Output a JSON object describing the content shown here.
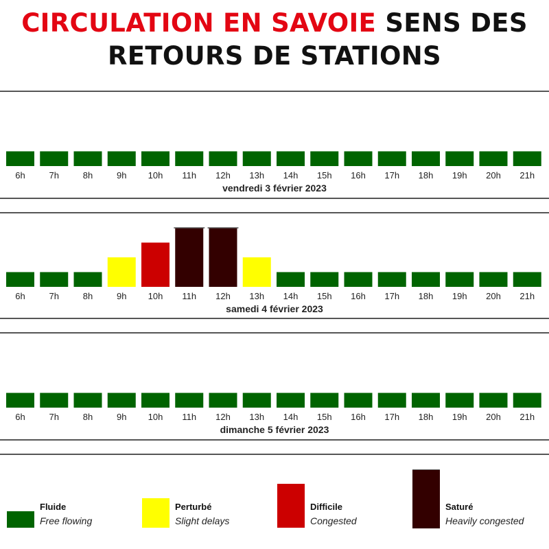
{
  "title": {
    "highlight": "CIRCULATION EN SAVOIE",
    "rest_line1": "SENS DES",
    "line2": "RETOURS DE STATIONS"
  },
  "colors": {
    "fluide": "#006400",
    "perturbe": "#ffff00",
    "difficile": "#cc0000",
    "sature": "#330000"
  },
  "chart_data": [
    {
      "type": "bar",
      "date_label": "vendredi 3 février 2023",
      "categories": [
        "6h",
        "7h",
        "8h",
        "9h",
        "10h",
        "11h",
        "12h",
        "13h",
        "14h",
        "15h",
        "16h",
        "17h",
        "18h",
        "19h",
        "20h",
        "21h"
      ],
      "levels": [
        1,
        1,
        1,
        1,
        1,
        1,
        1,
        1,
        1,
        1,
        1,
        1,
        1,
        1,
        1,
        1
      ],
      "ylim": [
        0,
        4
      ]
    },
    {
      "type": "bar",
      "date_label": "samedi 4 février 2023",
      "categories": [
        "6h",
        "7h",
        "8h",
        "9h",
        "10h",
        "11h",
        "12h",
        "13h",
        "14h",
        "15h",
        "16h",
        "17h",
        "18h",
        "19h",
        "20h",
        "21h"
      ],
      "levels": [
        1,
        1,
        1,
        2,
        3,
        4,
        4,
        2,
        1,
        1,
        1,
        1,
        1,
        1,
        1,
        1
      ],
      "ylim": [
        0,
        4
      ]
    },
    {
      "type": "bar",
      "date_label": "dimanche 5 février 2023",
      "categories": [
        "6h",
        "7h",
        "8h",
        "9h",
        "10h",
        "11h",
        "12h",
        "13h",
        "14h",
        "15h",
        "16h",
        "17h",
        "18h",
        "19h",
        "20h",
        "21h"
      ],
      "levels": [
        1,
        1,
        1,
        1,
        1,
        1,
        1,
        1,
        1,
        1,
        1,
        1,
        1,
        1,
        1,
        1
      ],
      "ylim": [
        0,
        4
      ]
    }
  ],
  "legend": [
    {
      "level": 1,
      "fr": "Fluide",
      "en": "Free flowing"
    },
    {
      "level": 2,
      "fr": "Perturbé",
      "en": "Slight delays"
    },
    {
      "level": 3,
      "fr": "Difficile",
      "en": "Congested"
    },
    {
      "level": 4,
      "fr": "Saturé",
      "en": "Heavily congested"
    }
  ]
}
